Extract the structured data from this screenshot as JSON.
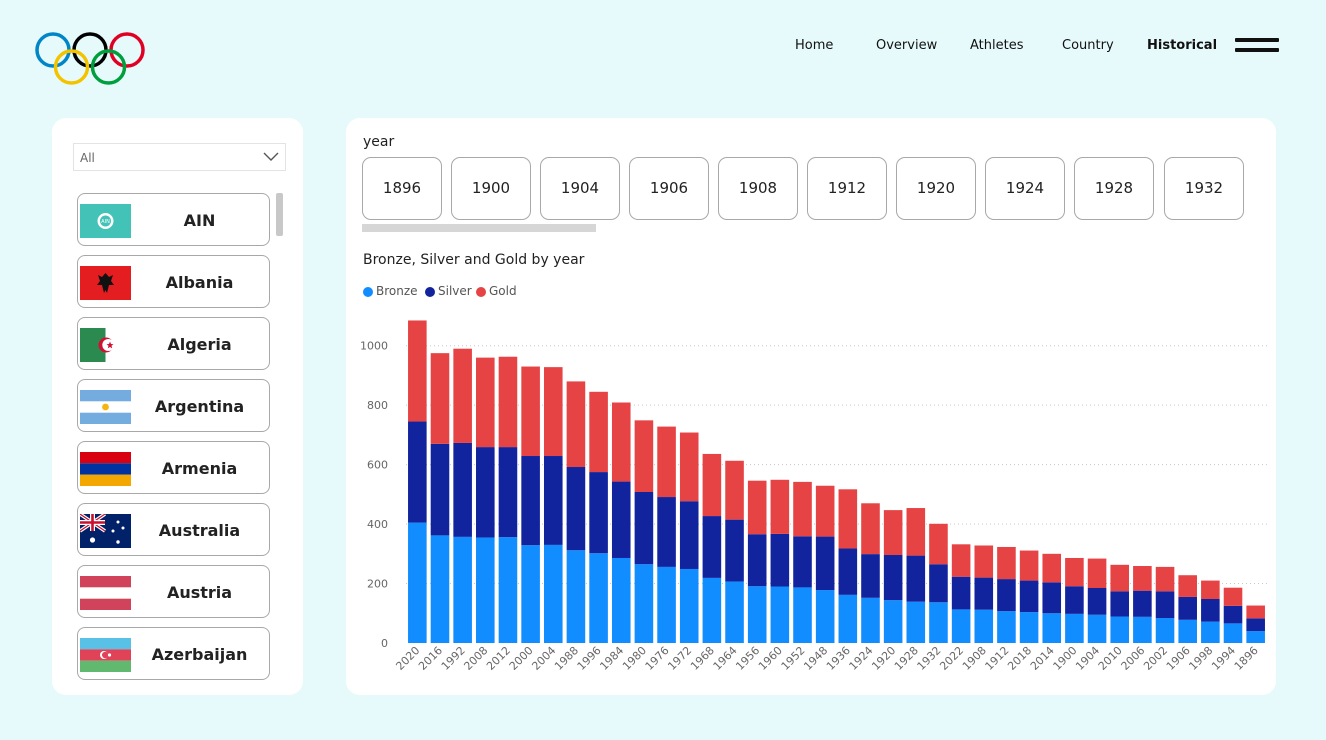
{
  "nav": {
    "items": [
      {
        "label": "Home",
        "active": false
      },
      {
        "label": "Overview",
        "active": false
      },
      {
        "label": "Athletes",
        "active": false
      },
      {
        "label": "Country",
        "active": false
      },
      {
        "label": "Historical",
        "active": true
      }
    ],
    "menu_icon": "hamburger-menu-icon"
  },
  "logo": {
    "icon": "olympic-rings-logo",
    "colors": [
      "#0085c7",
      "#000000",
      "#df0024",
      "#f4c300",
      "#009f3d"
    ]
  },
  "filter": {
    "dropdown": {
      "value": "All",
      "icon": "chevron-down-icon"
    },
    "countries": [
      {
        "name": "AIN",
        "flag_icon": "ain-flag-icon"
      },
      {
        "name": "Albania",
        "flag_icon": "albania-flag-icon"
      },
      {
        "name": "Algeria",
        "flag_icon": "algeria-flag-icon"
      },
      {
        "name": "Argentina",
        "flag_icon": "argentina-flag-icon"
      },
      {
        "name": "Armenia",
        "flag_icon": "armenia-flag-icon"
      },
      {
        "name": "Australia",
        "flag_icon": "australia-flag-icon"
      },
      {
        "name": "Austria",
        "flag_icon": "austria-flag-icon"
      },
      {
        "name": "Azerbaijan",
        "flag_icon": "azerbaijan-flag-icon"
      }
    ]
  },
  "year_slicer": {
    "label": "year",
    "years": [
      "1896",
      "1900",
      "1904",
      "1906",
      "1908",
      "1912",
      "1920",
      "1924",
      "1928",
      "1932"
    ]
  },
  "chart_data": {
    "type": "bar",
    "stacked": true,
    "title": "Bronze, Silver and Gold by year",
    "xlabel": "",
    "ylabel": "",
    "ylim": [
      0,
      1100
    ],
    "yticks": [
      0,
      200,
      400,
      600,
      800,
      1000
    ],
    "grid": true,
    "legend_position": "top-left",
    "categories": [
      "2020",
      "2016",
      "1992",
      "2008",
      "2012",
      "2000",
      "2004",
      "1988",
      "1996",
      "1984",
      "1980",
      "1976",
      "1972",
      "1968",
      "1964",
      "1956",
      "1960",
      "1952",
      "1948",
      "1936",
      "1924",
      "1920",
      "1928",
      "1932",
      "2022",
      "1908",
      "1912",
      "2018",
      "2014",
      "1900",
      "1904",
      "2010",
      "2006",
      "2002",
      "1906",
      "1998",
      "1994",
      "1896"
    ],
    "series": [
      {
        "name": "Bronze",
        "color": "#118dff",
        "values": [
          405,
          362,
          357,
          355,
          356,
          329,
          330,
          312,
          302,
          286,
          265,
          256,
          249,
          219,
          207,
          191,
          190,
          187,
          178,
          162,
          152,
          144,
          139,
          137,
          113,
          112,
          107,
          104,
          100,
          98,
          95,
          89,
          88,
          84,
          78,
          72,
          66,
          40
        ]
      },
      {
        "name": "Silver",
        "color": "#12239e",
        "values": [
          340,
          308,
          316,
          304,
          303,
          300,
          299,
          280,
          273,
          257,
          243,
          235,
          228,
          208,
          208,
          175,
          177,
          172,
          180,
          156,
          147,
          152,
          155,
          128,
          110,
          108,
          108,
          106,
          104,
          93,
          90,
          85,
          88,
          90,
          77,
          76,
          59,
          43
        ]
      },
      {
        "name": "Gold",
        "color": "#e64345",
        "values": [
          340,
          305,
          317,
          301,
          304,
          301,
          299,
          288,
          270,
          266,
          241,
          237,
          231,
          209,
          198,
          180,
          182,
          183,
          171,
          199,
          171,
          151,
          160,
          136,
          109,
          108,
          108,
          101,
          96,
          95,
          99,
          89,
          83,
          82,
          73,
          62,
          61,
          43
        ]
      }
    ]
  }
}
